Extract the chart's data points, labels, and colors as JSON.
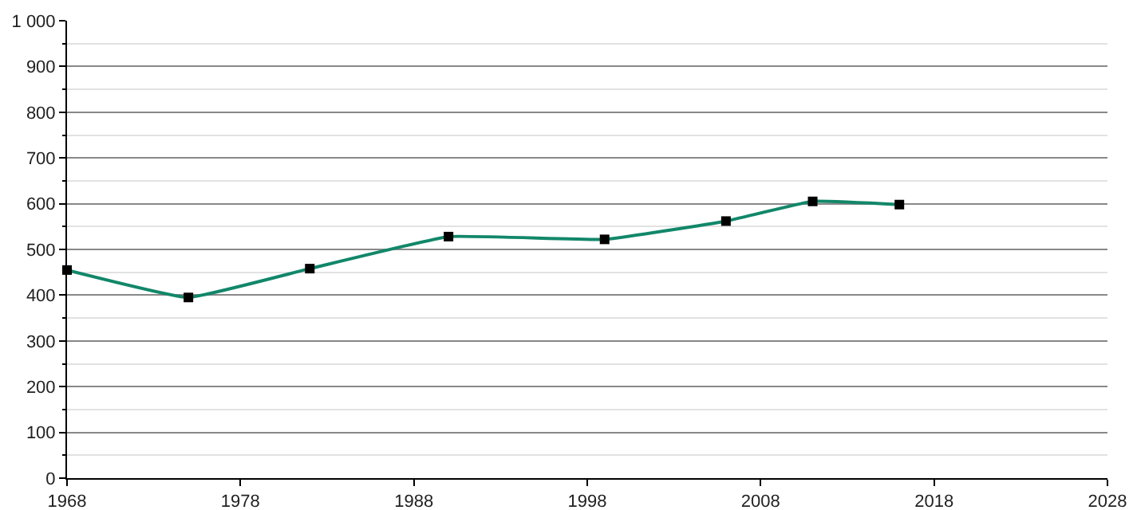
{
  "chart_data": {
    "type": "line",
    "x": [
      1968,
      1975,
      1982,
      1990,
      1999,
      2006,
      2011,
      2016
    ],
    "series": [
      {
        "color": "#12876a",
        "values": [
          455,
          395,
          458,
          528,
          522,
          562,
          605,
          598
        ]
      }
    ],
    "xlim": [
      1968,
      2028
    ],
    "xticks": [
      1968,
      1978,
      1988,
      1998,
      2008,
      2018,
      2028
    ],
    "ylim": [
      0,
      1000
    ],
    "yticks": [
      0,
      {
        "value": 50,
        "label": null
      },
      100,
      {
        "value": 150,
        "label": null
      },
      200,
      {
        "value": 250,
        "label": null
      },
      300,
      {
        "value": 350,
        "label": null
      },
      400,
      {
        "value": 450,
        "label": null
      },
      500,
      {
        "value": 550,
        "label": null
      },
      600,
      {
        "value": 650,
        "label": null
      },
      700,
      {
        "value": 750,
        "label": null
      },
      800,
      {
        "value": 850,
        "label": null
      },
      900,
      {
        "value": 950,
        "label": null
      },
      {
        "value": 1000,
        "label": "1 000"
      }
    ],
    "grid": "y",
    "marker": "square",
    "line_style": "solid"
  }
}
